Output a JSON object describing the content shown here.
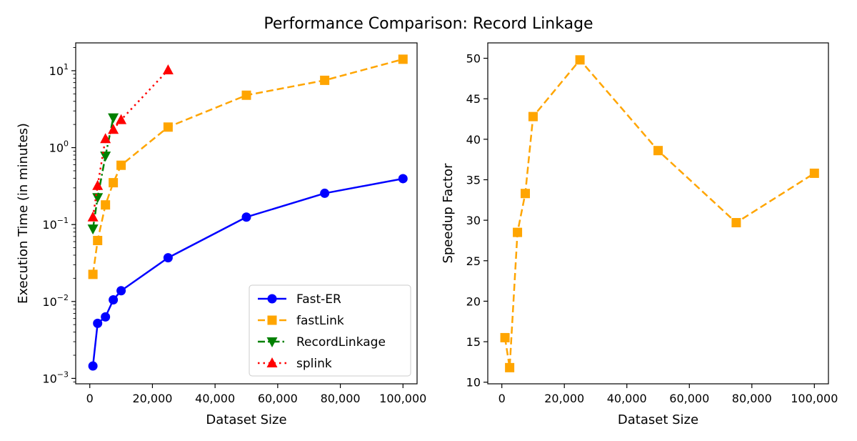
{
  "figure": {
    "title": "Performance Comparison: Record Linkage"
  },
  "chart_data": [
    {
      "type": "line",
      "xlabel": "Dataset Size",
      "ylabel": "Execution Time (in minutes)",
      "yscale": "log",
      "xlim": [
        -4500,
        104500
      ],
      "ylim": [
        0.00085,
        23
      ],
      "xticks": [
        0,
        20000,
        40000,
        60000,
        80000,
        100000
      ],
      "xtick_labels": [
        "0",
        "20,000",
        "40,000",
        "60,000",
        "80,000",
        "100,000"
      ],
      "yticks": [
        0.001,
        0.01,
        0.1,
        1,
        10
      ],
      "ytick_labels": [
        {
          "base": "10",
          "exp": "−3"
        },
        {
          "base": "10",
          "exp": "−2"
        },
        {
          "base": "10",
          "exp": "−1"
        },
        {
          "base": "10",
          "exp": "0"
        },
        {
          "base": "10",
          "exp": "1"
        }
      ],
      "grid": false,
      "legend": "lower-right",
      "series": [
        {
          "name": "Fast-ER",
          "color": "#0000ff",
          "linestyle": "solid",
          "marker": "circle",
          "x": [
            1000,
            2500,
            5000,
            7500,
            10000,
            25000,
            50000,
            75000,
            100000
          ],
          "y": [
            0.00145,
            0.0052,
            0.0063,
            0.0105,
            0.0138,
            0.037,
            0.125,
            0.255,
            0.395
          ]
        },
        {
          "name": "fastLink",
          "color": "#ffa500",
          "linestyle": "dashed",
          "marker": "square",
          "x": [
            1000,
            2500,
            5000,
            7500,
            10000,
            25000,
            50000,
            75000,
            100000
          ],
          "y": [
            0.0225,
            0.062,
            0.18,
            0.35,
            0.59,
            1.85,
            4.8,
            7.5,
            14.1
          ]
        },
        {
          "name": "RecordLinkage",
          "color": "#008000",
          "linestyle": "dashdot",
          "marker": "triangle-down",
          "x": [
            1000,
            2500,
            5000,
            7500
          ],
          "y": [
            0.088,
            0.225,
            0.78,
            2.45
          ]
        },
        {
          "name": "splink",
          "color": "#ff0000",
          "linestyle": "dotted",
          "marker": "triangle-up",
          "x": [
            1000,
            2500,
            5000,
            7500,
            10000,
            25000
          ],
          "y": [
            0.125,
            0.32,
            1.3,
            1.72,
            2.3,
            10.2
          ]
        }
      ]
    },
    {
      "type": "line",
      "xlabel": "Dataset Size",
      "ylabel": "Speedup Factor",
      "yscale": "linear",
      "xlim": [
        -4500,
        104500
      ],
      "ylim": [
        9.8,
        51.9
      ],
      "xticks": [
        0,
        20000,
        40000,
        60000,
        80000,
        100000
      ],
      "xtick_labels": [
        "0",
        "20,000",
        "40,000",
        "60,000",
        "80,000",
        "100,000"
      ],
      "yticks": [
        10,
        15,
        20,
        25,
        30,
        35,
        40,
        45,
        50
      ],
      "ytick_labels": [
        "10",
        "15",
        "20",
        "25",
        "30",
        "35",
        "40",
        "45",
        "50"
      ],
      "grid": false,
      "series": [
        {
          "color": "#ffa500",
          "linestyle": "dashed",
          "marker": "square",
          "x": [
            1000,
            2500,
            5000,
            7500,
            10000,
            25000,
            50000,
            75000,
            100000
          ],
          "y": [
            15.5,
            11.8,
            28.5,
            33.3,
            42.8,
            49.8,
            38.6,
            29.7,
            35.8
          ]
        }
      ]
    }
  ]
}
